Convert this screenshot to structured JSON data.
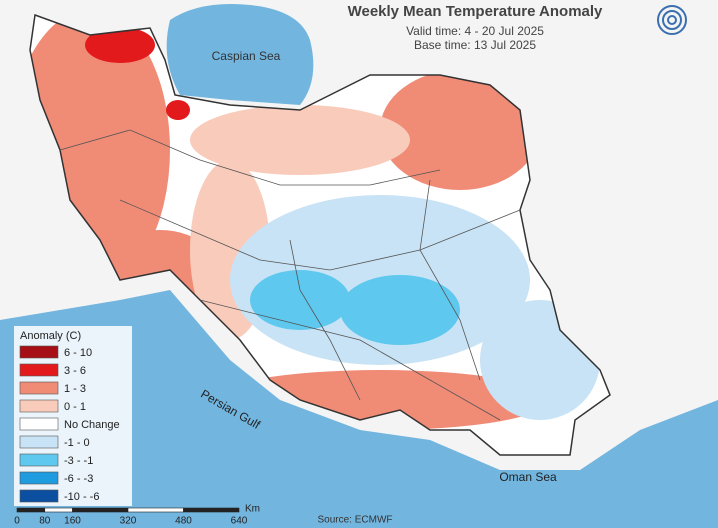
{
  "header": {
    "title": "Weekly Mean Temperature Anomaly",
    "valid_time": "Valid time: 4 - 20 Jul 2025",
    "base_time": "Base time: 13 Jul 2025"
  },
  "water_labels": [
    "Caspian Sea",
    "Persian Gulf",
    "Oman Sea"
  ],
  "legend": {
    "title": "Anomaly (C)",
    "items": [
      {
        "label": "6 - 10",
        "color": "#a50f15"
      },
      {
        "label": "3 - 6",
        "color": "#e31a1c"
      },
      {
        "label": "1 - 3",
        "color": "#f08b76"
      },
      {
        "label": "0 - 1",
        "color": "#f9cbbb"
      },
      {
        "label": "No Change",
        "color": "#ffffff"
      },
      {
        "label": "-1 - 0",
        "color": "#c8e3f5"
      },
      {
        "label": "-3 - -1",
        "color": "#5ec8ee"
      },
      {
        "label": "-6 - -3",
        "color": "#1f9ce0"
      },
      {
        "label": "-10 - -6",
        "color": "#0b4fa0"
      }
    ]
  },
  "scale_bar": {
    "ticks": [
      0,
      80,
      160,
      320,
      480,
      640
    ],
    "unit": "Km"
  },
  "source": "Source: ECMWF"
}
